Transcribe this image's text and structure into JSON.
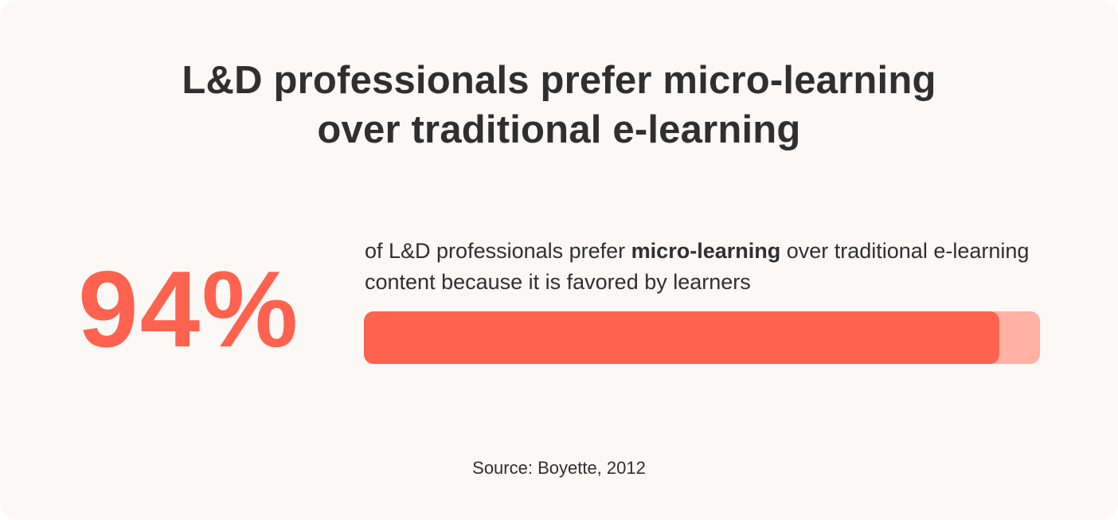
{
  "title": {
    "line1": "L&D professionals prefer micro-learning",
    "line2": "over traditional e-learning"
  },
  "stat": {
    "value_text": "94%",
    "description_before": "of L&D professionals prefer ",
    "description_bold": "micro-learning",
    "description_after": " over traditional e-learning content because it is favored by learners"
  },
  "source": "Source: Boyette, 2012",
  "colors": {
    "accent": "#ff624f",
    "track": "#ffb1a3",
    "background": "#fcf8f5",
    "text": "#2f2f2f"
  },
  "chart_data": {
    "type": "bar",
    "categories": [
      "L&D professionals preferring micro-learning"
    ],
    "values": [
      94
    ],
    "ylim": [
      0,
      100
    ]
  }
}
